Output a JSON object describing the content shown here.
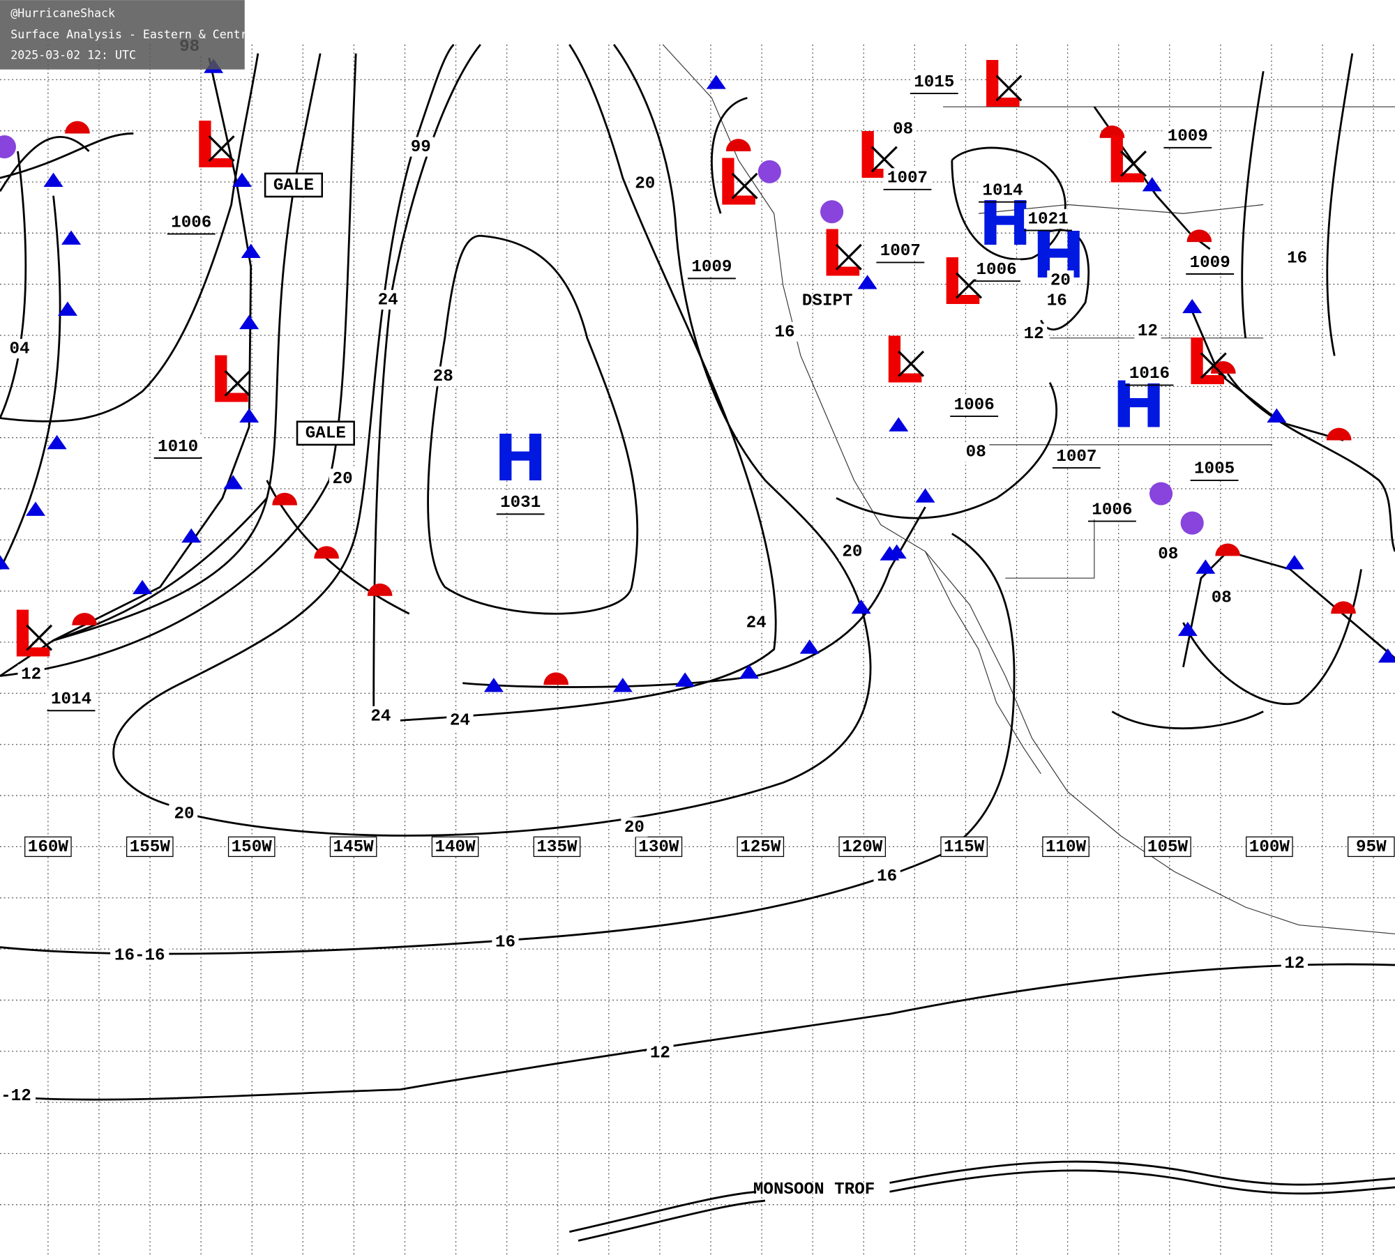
{
  "header": {
    "handle": "@HurricaneShack",
    "title": "Surface Analysis - Eastern & Central Pacific Ocean",
    "timestamp": "2025-03-02 12: UTC"
  },
  "longitudes": [
    "160W",
    "155W",
    "150W",
    "145W",
    "140W",
    "135W",
    "130W",
    "125W",
    "120W",
    "115W",
    "110W",
    "105W",
    "100W",
    "95W"
  ],
  "centers": [
    "L",
    "L",
    "L",
    "H",
    "L",
    "L",
    "L",
    "L",
    "L",
    "L",
    "L",
    "L",
    "H",
    "H",
    "H"
  ],
  "isobar_labels": [
    "98",
    "1006",
    "04",
    "1010",
    "1014",
    "12",
    "99",
    "24",
    "28",
    "20",
    "24",
    "24",
    "20",
    "20",
    "24",
    "20",
    "1009",
    "20",
    "16",
    "16",
    "16-16",
    "12",
    "12",
    "-12",
    "1007",
    "1007",
    "08",
    "1015",
    "1014",
    "1021",
    "1006",
    "20",
    "16",
    "12",
    "1006",
    "08",
    "1007",
    "1006",
    "1005",
    "08",
    "08",
    "1016",
    "12",
    "1009",
    "1009",
    "16",
    "16",
    "1031"
  ],
  "annotations": [
    "GALE",
    "GALE",
    "DSIPT",
    "MONSOON TROF"
  ]
}
